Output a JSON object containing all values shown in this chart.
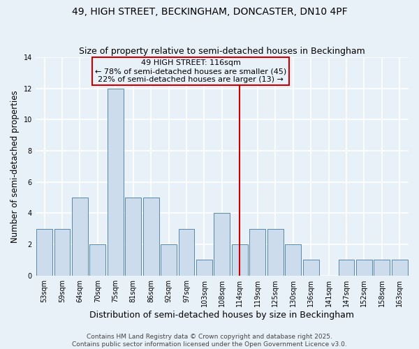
{
  "title": "49, HIGH STREET, BECKINGHAM, DONCASTER, DN10 4PF",
  "subtitle": "Size of property relative to semi-detached houses in Beckingham",
  "xlabel": "Distribution of semi-detached houses by size in Beckingham",
  "ylabel": "Number of semi-detached properties",
  "categories": [
    "53sqm",
    "59sqm",
    "64sqm",
    "70sqm",
    "75sqm",
    "81sqm",
    "86sqm",
    "92sqm",
    "97sqm",
    "103sqm",
    "108sqm",
    "114sqm",
    "119sqm",
    "125sqm",
    "130sqm",
    "136sqm",
    "141sqm",
    "147sqm",
    "152sqm",
    "158sqm",
    "163sqm"
  ],
  "values": [
    3,
    3,
    5,
    2,
    12,
    5,
    5,
    2,
    3,
    1,
    4,
    2,
    3,
    3,
    2,
    1,
    0,
    1,
    1,
    1,
    1
  ],
  "bar_color": "#ccdcec",
  "bar_edge_color": "#5588aa",
  "background_color": "#e8f0f8",
  "grid_color": "#ffffff",
  "property_line_index": 11,
  "property_label": "49 HIGH STREET: 116sqm",
  "annotation_line1": "← 78% of semi-detached houses are smaller (45)",
  "annotation_line2": "22% of semi-detached houses are larger (13) →",
  "annotation_box_color": "#cc0000",
  "ylim": [
    0,
    14
  ],
  "yticks": [
    0,
    2,
    4,
    6,
    8,
    10,
    12,
    14
  ],
  "footer_line1": "Contains HM Land Registry data © Crown copyright and database right 2025.",
  "footer_line2": "Contains public sector information licensed under the Open Government Licence v3.0.",
  "title_fontsize": 10,
  "subtitle_fontsize": 9,
  "xlabel_fontsize": 9,
  "ylabel_fontsize": 8.5,
  "tick_fontsize": 7,
  "annotation_fontsize": 8,
  "footer_fontsize": 6.5
}
